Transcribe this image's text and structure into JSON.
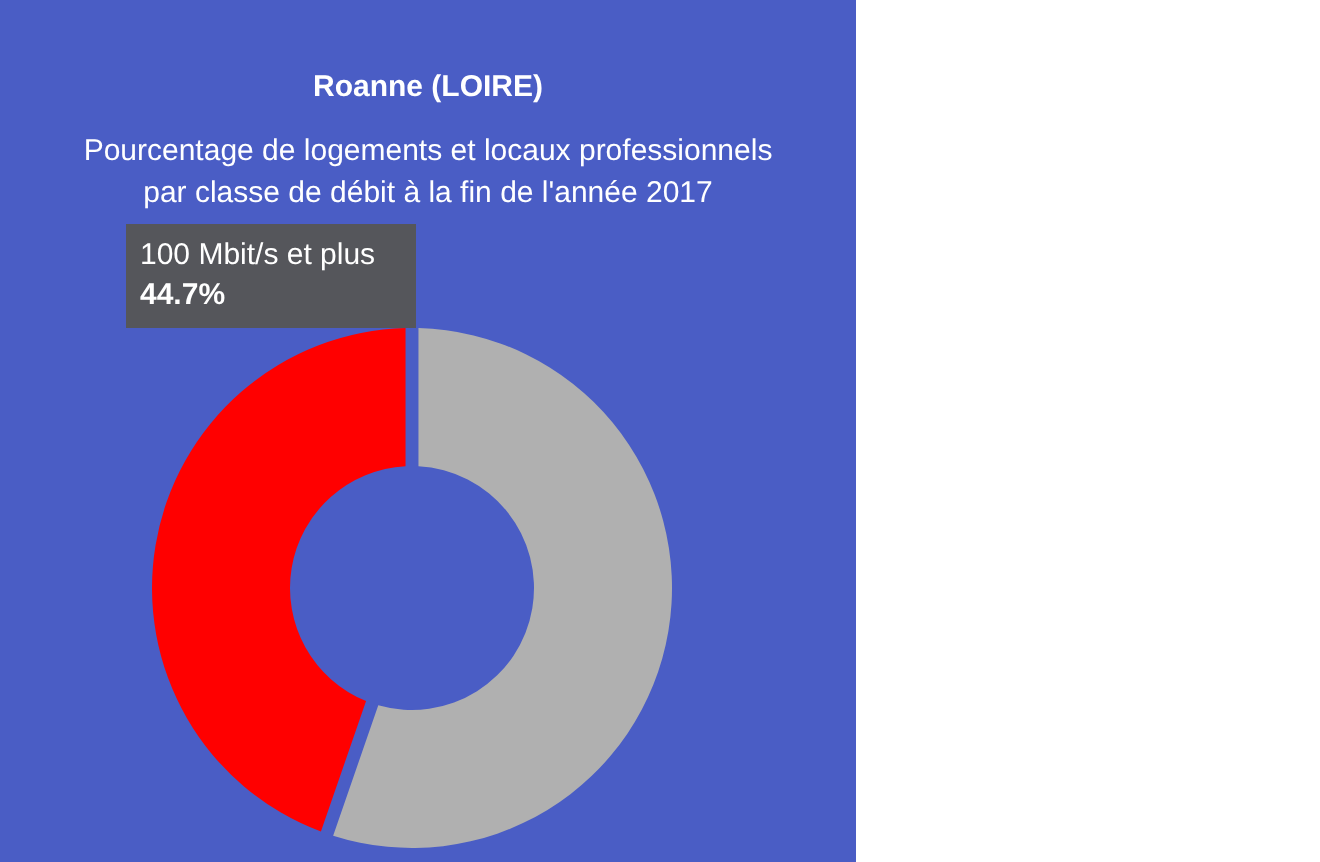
{
  "chart_data": {
    "type": "donut",
    "title": "Roanne (LOIRE)",
    "subtitle": "Pourcentage de logements et locaux professionnels par classe de débit à la fin de l'année 2017",
    "categories": [
      null,
      "100 Mbit/s et plus"
    ],
    "values": [
      55.3,
      44.7
    ],
    "colors": [
      "#b0b0b0",
      "#ff0000"
    ],
    "value_labels": [
      null,
      "44.7%"
    ]
  }
}
